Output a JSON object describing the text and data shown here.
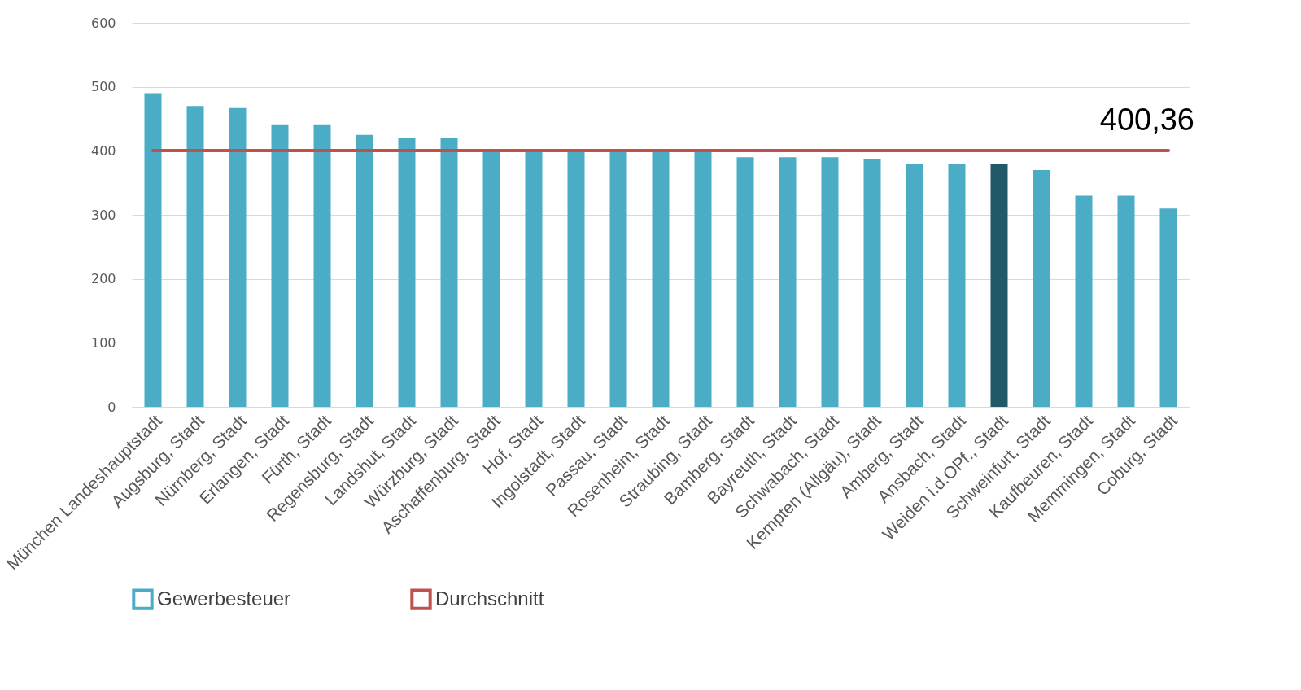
{
  "chart_data": {
    "type": "bar",
    "categories": [
      "München Landeshauptstadt",
      "Augsburg, Stadt",
      "Nürnberg, Stadt",
      "Erlangen, Stadt",
      "Fürth, Stadt",
      "Regensburg, Stadt",
      "Landshut, Stadt",
      "Würzburg, Stadt",
      "Aschaffenburg, Stadt",
      "Hof, Stadt",
      "Ingolstadt, Stadt",
      "Passau, Stadt",
      "Rosenheim, Stadt",
      "Straubing, Stadt",
      "Bamberg, Stadt",
      "Bayreuth, Stadt",
      "Schwabach, Stadt",
      "Kempten (Allgäu), Stadt",
      "Amberg, Stadt",
      "Ansbach, Stadt",
      "Weiden i.d.OPf., Stadt",
      "Schweinfurt, Stadt",
      "Kaufbeuren, Stadt",
      "Memmingen, Stadt",
      "Coburg, Stadt"
    ],
    "series": [
      {
        "name": "Gewerbesteuer",
        "color": "#4bacc6",
        "colors": [
          "#4bacc6",
          "#4bacc6",
          "#4bacc6",
          "#4bacc6",
          "#4bacc6",
          "#4bacc6",
          "#4bacc6",
          "#4bacc6",
          "#4bacc6",
          "#4bacc6",
          "#4bacc6",
          "#4bacc6",
          "#4bacc6",
          "#4bacc6",
          "#4bacc6",
          "#4bacc6",
          "#4bacc6",
          "#4bacc6",
          "#4bacc6",
          "#4bacc6",
          "#215968",
          "#4bacc6",
          "#4bacc6",
          "#4bacc6",
          "#4bacc6"
        ],
        "values": [
          490,
          470,
          467,
          440,
          440,
          425,
          420,
          420,
          400,
          400,
          400,
          400,
          400,
          400,
          390,
          390,
          390,
          387,
          380,
          380,
          380,
          370,
          330,
          330,
          310
        ]
      },
      {
        "name": "Durchschnitt",
        "type": "line",
        "color": "#c0504d",
        "values": [
          400.36,
          400.36,
          400.36,
          400.36,
          400.36,
          400.36,
          400.36,
          400.36,
          400.36,
          400.36,
          400.36,
          400.36,
          400.36,
          400.36,
          400.36,
          400.36,
          400.36,
          400.36,
          400.36,
          400.36,
          400.36,
          400.36,
          400.36,
          400.36,
          400.36
        ],
        "value_labels": [
          null,
          null,
          null,
          null,
          null,
          null,
          null,
          null,
          null,
          null,
          null,
          null,
          null,
          null,
          null,
          null,
          null,
          null,
          null,
          null,
          null,
          null,
          null,
          null,
          "400,36"
        ]
      }
    ],
    "ylim": [
      0,
      600
    ],
    "yticks": [
      0,
      100,
      200,
      300,
      400,
      500,
      600
    ],
    "grid": "y",
    "legend": "bottom"
  }
}
